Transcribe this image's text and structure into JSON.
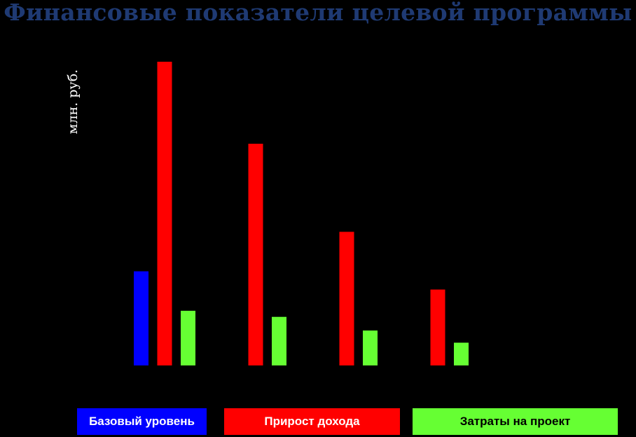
{
  "chart_data": {
    "type": "bar",
    "title": "Финансовые показатели целевой программы",
    "ylabel": "млн. руб.",
    "xlabel": "",
    "categories": [
      "",
      "",
      "",
      ""
    ],
    "ylim": [
      0,
      100
    ],
    "grid": false,
    "legend_position": "bottom",
    "series": [
      {
        "name": "Базовый уровень",
        "color": "#0000ff",
        "values": [
          31,
          null,
          null,
          null
        ]
      },
      {
        "name": "Прирост дохода",
        "color": "#ff0000",
        "values": [
          100,
          73,
          44,
          25
        ]
      },
      {
        "name": "Затраты на проект",
        "color": "#66ff33",
        "values": [
          18,
          16,
          11.5,
          7.5
        ]
      }
    ]
  }
}
